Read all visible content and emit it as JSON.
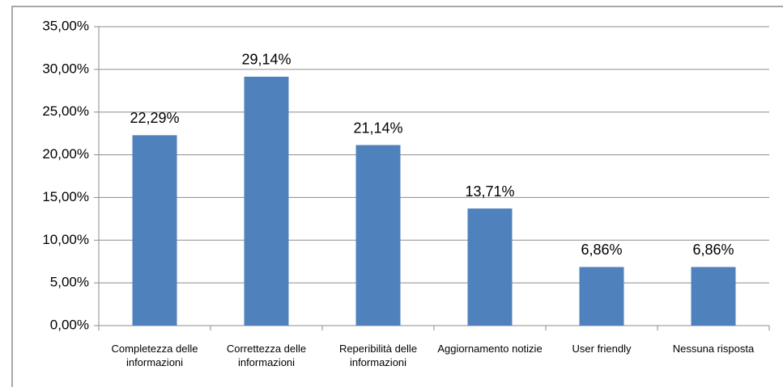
{
  "chart_data": {
    "type": "bar",
    "categories": [
      "Completezza delle informazioni",
      "Correttezza delle informazioni",
      "Reperibilità delle informazioni",
      "Aggiornamento notizie",
      "User friendly",
      "Nessuna risposta"
    ],
    "values": [
      22.29,
      29.14,
      21.14,
      13.71,
      6.86,
      6.86
    ],
    "value_labels": [
      "22,29%",
      "29,14%",
      "21,14%",
      "13,71%",
      "6,86%",
      "6,86%"
    ],
    "color": "#4f81bd",
    "ylim": [
      0,
      35
    ],
    "yticks": [
      {
        "value": 0,
        "label": "0,00%"
      },
      {
        "value": 5,
        "label": "5,00%"
      },
      {
        "value": 10,
        "label": "10,00%"
      },
      {
        "value": 15,
        "label": "15,00%"
      },
      {
        "value": 20,
        "label": "20,00%"
      },
      {
        "value": 25,
        "label": "25,00%"
      },
      {
        "value": 30,
        "label": "30,00%"
      },
      {
        "value": 35,
        "label": "35,00%"
      }
    ],
    "grid": true
  }
}
